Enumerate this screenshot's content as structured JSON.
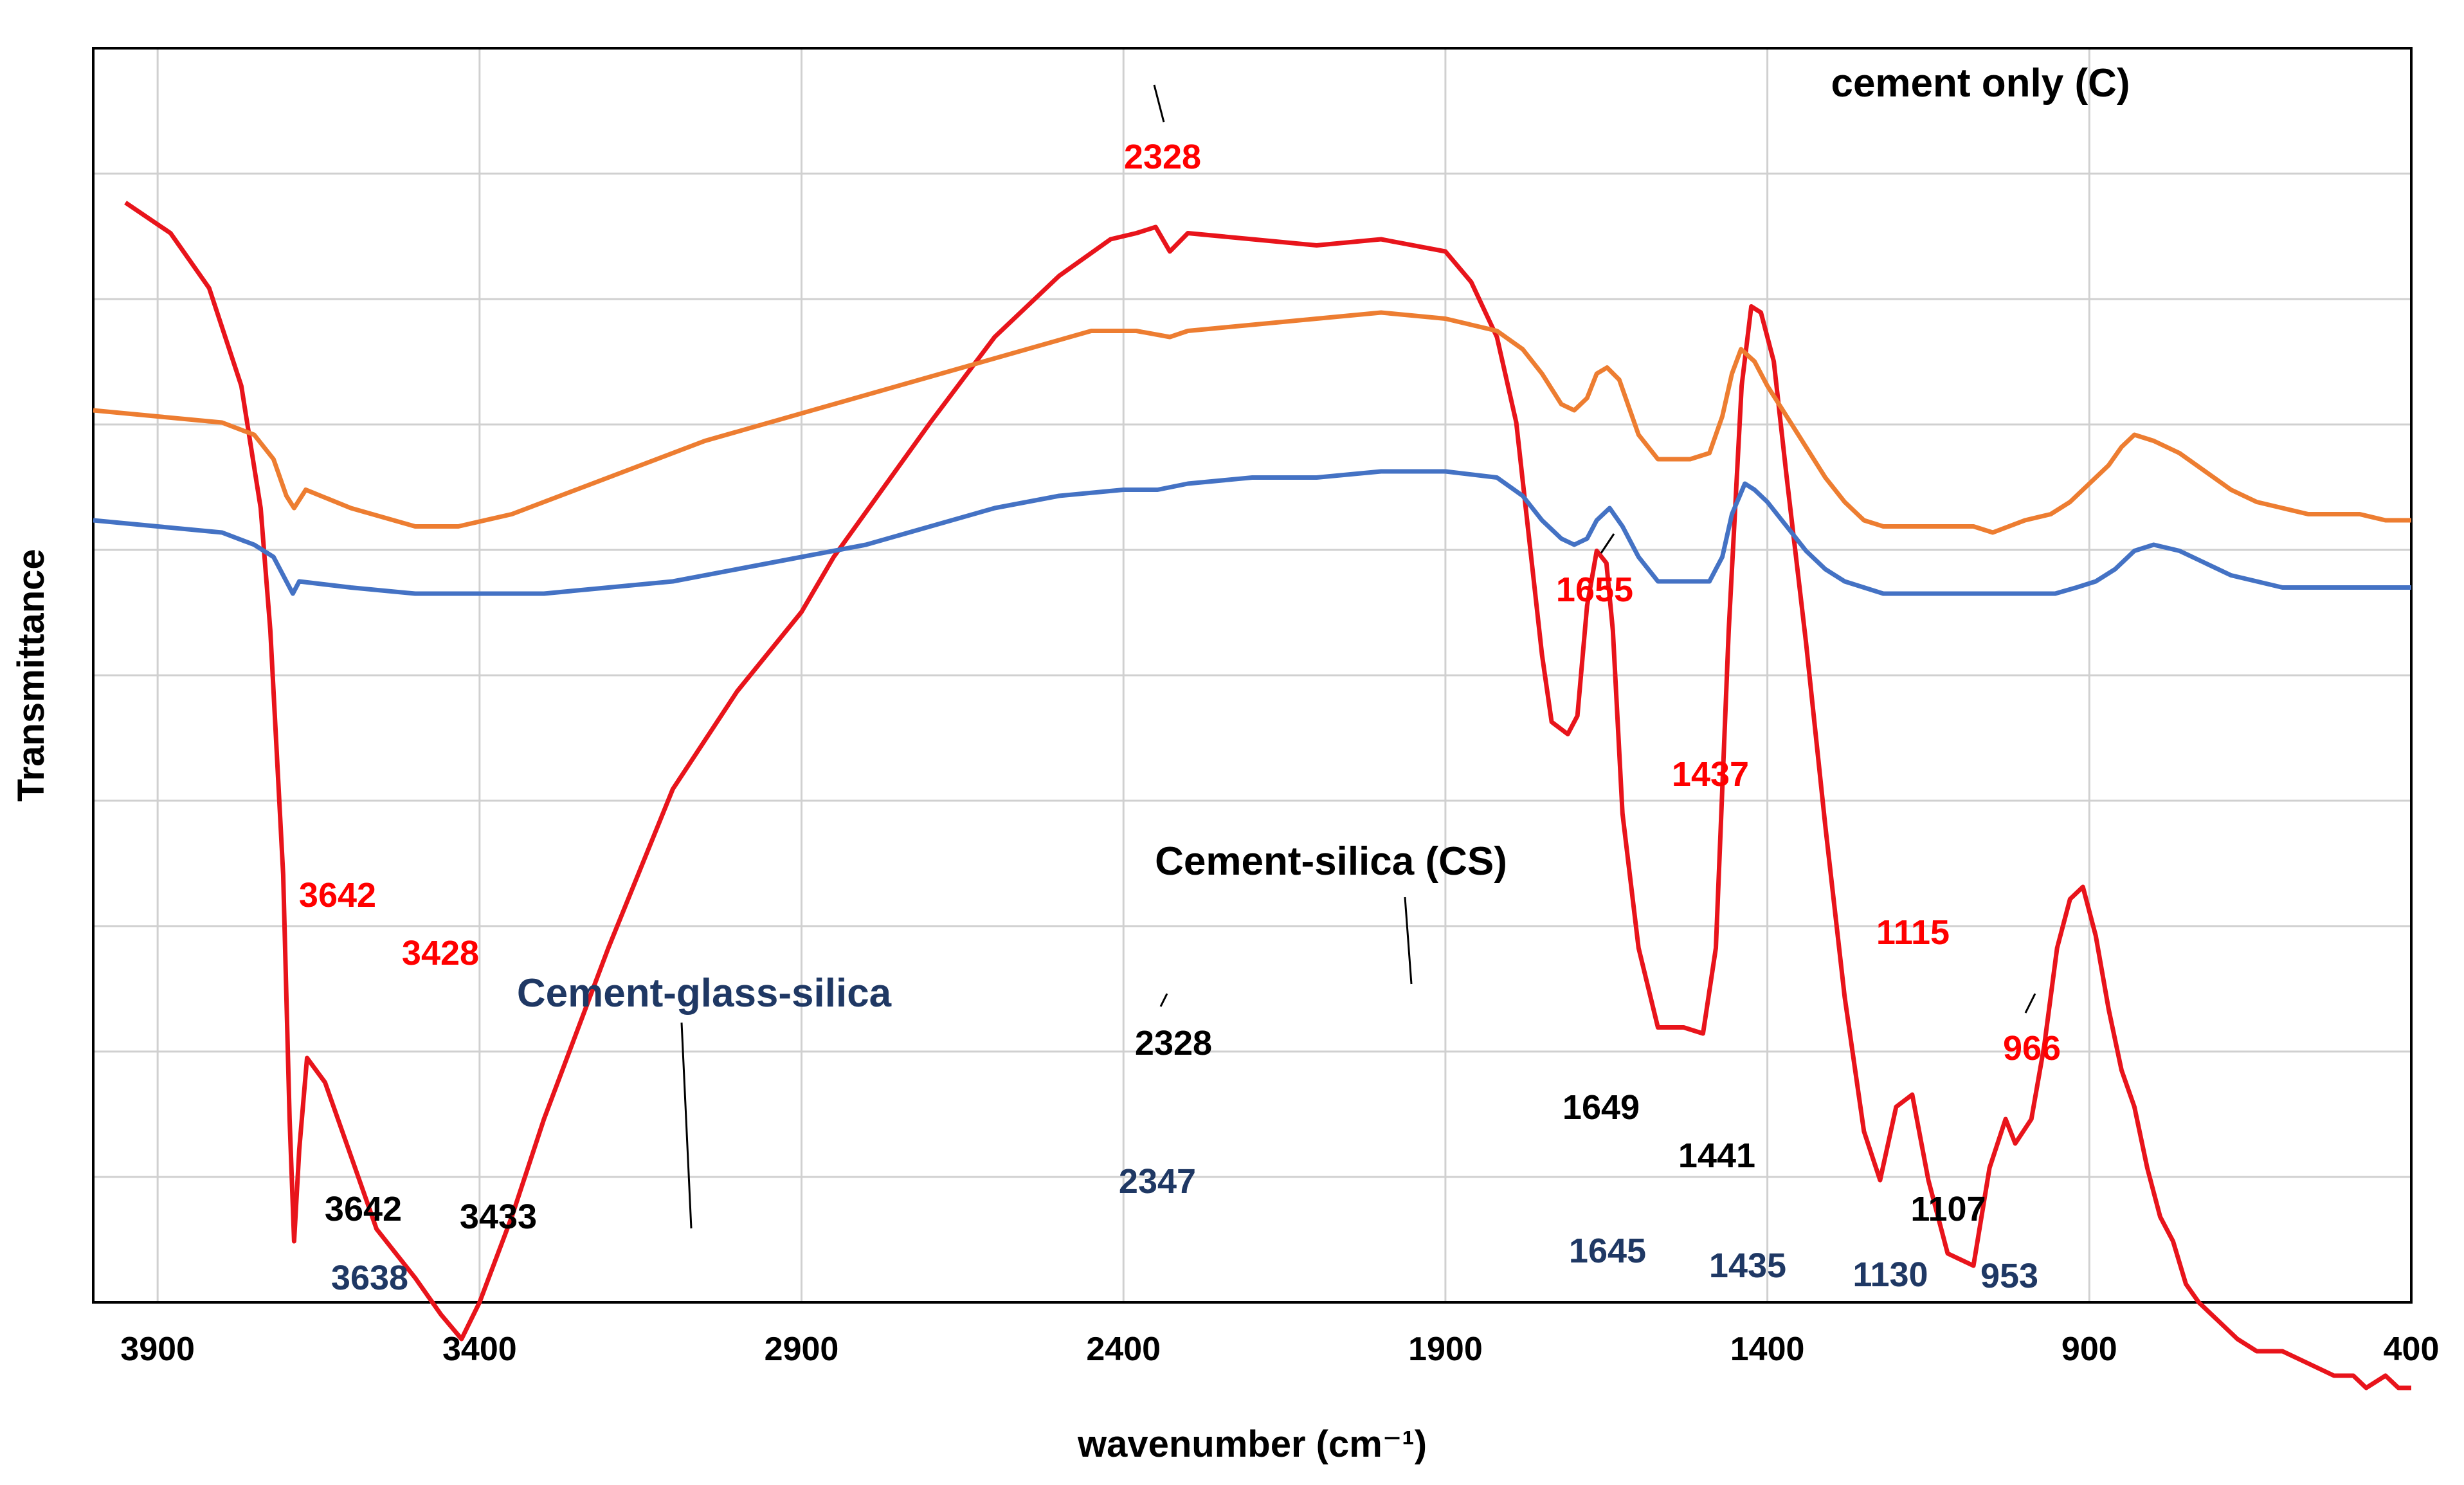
{
  "chart_data": {
    "type": "line",
    "xlabel": "wavenumber (cm⁻¹)",
    "ylabel": "Transmittance",
    "xlim": [
      4000,
      400
    ],
    "x_reversed": true,
    "x_ticks": [
      3900,
      3400,
      2900,
      2400,
      1900,
      1400,
      900,
      400
    ],
    "y_tick_labels_shown": false,
    "grid": "horizontal and vertical",
    "series": [
      {
        "name": "cement only (C)",
        "color": "#e8141b",
        "y_offset": 0,
        "points": [
          [
            3950,
            100
          ],
          [
            3880,
            95
          ],
          [
            3820,
            86
          ],
          [
            3770,
            70
          ],
          [
            3740,
            50
          ],
          [
            3725,
            30
          ],
          [
            3705,
            -10
          ],
          [
            3695,
            -50
          ],
          [
            3688,
            -70
          ],
          [
            3680,
            -55
          ],
          [
            3668,
            -40
          ],
          [
            3640,
            -44
          ],
          [
            3600,
            -56
          ],
          [
            3560,
            -68
          ],
          [
            3500,
            -76
          ],
          [
            3460,
            -82
          ],
          [
            3428,
            -86
          ],
          [
            3400,
            -80
          ],
          [
            3350,
            -66
          ],
          [
            3300,
            -50
          ],
          [
            3200,
            -22
          ],
          [
            3100,
            4
          ],
          [
            3000,
            20
          ],
          [
            2900,
            33
          ],
          [
            2850,
            42
          ],
          [
            2700,
            64
          ],
          [
            2600,
            78
          ],
          [
            2500,
            88
          ],
          [
            2420,
            94
          ],
          [
            2380,
            95
          ],
          [
            2350,
            96
          ],
          [
            2328,
            92
          ],
          [
            2300,
            95
          ],
          [
            2200,
            94
          ],
          [
            2100,
            93
          ],
          [
            2000,
            94
          ],
          [
            1900,
            92
          ],
          [
            1860,
            87
          ],
          [
            1820,
            78
          ],
          [
            1790,
            64
          ],
          [
            1770,
            45
          ],
          [
            1750,
            26
          ],
          [
            1735,
            15
          ],
          [
            1710,
            13
          ],
          [
            1695,
            16
          ],
          [
            1680,
            34
          ],
          [
            1665,
            43
          ],
          [
            1650,
            41
          ],
          [
            1640,
            30
          ],
          [
            1625,
            0
          ],
          [
            1600,
            -22
          ],
          [
            1570,
            -35
          ],
          [
            1530,
            -35
          ],
          [
            1500,
            -36
          ],
          [
            1480,
            -22
          ],
          [
            1460,
            30
          ],
          [
            1440,
            70
          ],
          [
            1425,
            83
          ],
          [
            1410,
            82
          ],
          [
            1390,
            74
          ],
          [
            1370,
            55
          ],
          [
            1340,
            28
          ],
          [
            1310,
            -2
          ],
          [
            1280,
            -30
          ],
          [
            1250,
            -52
          ],
          [
            1225,
            -60
          ],
          [
            1200,
            -48
          ],
          [
            1175,
            -46
          ],
          [
            1150,
            -60
          ],
          [
            1120,
            -72
          ],
          [
            1080,
            -74
          ],
          [
            1055,
            -58
          ],
          [
            1030,
            -50
          ],
          [
            1015,
            -54
          ],
          [
            990,
            -50
          ],
          [
            970,
            -38
          ],
          [
            950,
            -22
          ],
          [
            930,
            -14
          ],
          [
            910,
            -12
          ],
          [
            890,
            -20
          ],
          [
            870,
            -32
          ],
          [
            850,
            -42
          ],
          [
            830,
            -48
          ],
          [
            810,
            -58
          ],
          [
            790,
            -66
          ],
          [
            770,
            -70
          ],
          [
            750,
            -77
          ],
          [
            730,
            -80
          ],
          [
            700,
            -83
          ],
          [
            670,
            -86
          ],
          [
            640,
            -88
          ],
          [
            600,
            -88
          ],
          [
            560,
            -90
          ],
          [
            520,
            -92
          ],
          [
            490,
            -92
          ],
          [
            470,
            -94
          ],
          [
            440,
            -92
          ],
          [
            420,
            -94
          ],
          [
            400,
            -94
          ]
        ]
      },
      {
        "name": "Cement-silica (CS)",
        "color": "#ed7d31",
        "points": [
          [
            4000,
            66
          ],
          [
            3900,
            65
          ],
          [
            3800,
            64
          ],
          [
            3750,
            62
          ],
          [
            3720,
            58
          ],
          [
            3700,
            52
          ],
          [
            3688,
            50
          ],
          [
            3670,
            53
          ],
          [
            3600,
            50
          ],
          [
            3500,
            47
          ],
          [
            3433,
            47
          ],
          [
            3350,
            49
          ],
          [
            3250,
            53
          ],
          [
            3150,
            57
          ],
          [
            3050,
            61
          ],
          [
            2950,
            64
          ],
          [
            2850,
            67
          ],
          [
            2750,
            70
          ],
          [
            2650,
            73
          ],
          [
            2550,
            76
          ],
          [
            2450,
            79
          ],
          [
            2380,
            79
          ],
          [
            2328,
            78
          ],
          [
            2300,
            79
          ],
          [
            2200,
            80
          ],
          [
            2100,
            81
          ],
          [
            2000,
            82
          ],
          [
            1900,
            81
          ],
          [
            1820,
            79
          ],
          [
            1780,
            76
          ],
          [
            1750,
            72
          ],
          [
            1720,
            67
          ],
          [
            1700,
            66
          ],
          [
            1680,
            68
          ],
          [
            1665,
            72
          ],
          [
            1649,
            73
          ],
          [
            1630,
            71
          ],
          [
            1600,
            62
          ],
          [
            1570,
            58
          ],
          [
            1520,
            58
          ],
          [
            1490,
            59
          ],
          [
            1470,
            65
          ],
          [
            1455,
            72
          ],
          [
            1441,
            76
          ],
          [
            1420,
            74
          ],
          [
            1400,
            70
          ],
          [
            1370,
            65
          ],
          [
            1340,
            60
          ],
          [
            1310,
            55
          ],
          [
            1280,
            51
          ],
          [
            1250,
            48
          ],
          [
            1220,
            47
          ],
          [
            1200,
            47
          ],
          [
            1150,
            47
          ],
          [
            1107,
            47
          ],
          [
            1080,
            47
          ],
          [
            1050,
            46
          ],
          [
            1000,
            48
          ],
          [
            960,
            49
          ],
          [
            930,
            51
          ],
          [
            900,
            54
          ],
          [
            870,
            57
          ],
          [
            850,
            60
          ],
          [
            830,
            62
          ],
          [
            800,
            61
          ],
          [
            760,
            59
          ],
          [
            720,
            56
          ],
          [
            680,
            53
          ],
          [
            640,
            51
          ],
          [
            600,
            50
          ],
          [
            560,
            49
          ],
          [
            520,
            49
          ],
          [
            480,
            49
          ],
          [
            440,
            48
          ],
          [
            400,
            48
          ]
        ]
      },
      {
        "name": "Cement-glass-silica",
        "color": "#4472c4",
        "points": [
          [
            4000,
            48
          ],
          [
            3900,
            47
          ],
          [
            3800,
            46
          ],
          [
            3750,
            44
          ],
          [
            3720,
            42
          ],
          [
            3700,
            38
          ],
          [
            3690,
            36
          ],
          [
            3680,
            38
          ],
          [
            3600,
            37
          ],
          [
            3500,
            36
          ],
          [
            3400,
            36
          ],
          [
            3300,
            36
          ],
          [
            3200,
            37
          ],
          [
            3100,
            38
          ],
          [
            3000,
            40
          ],
          [
            2900,
            42
          ],
          [
            2800,
            44
          ],
          [
            2700,
            47
          ],
          [
            2600,
            50
          ],
          [
            2500,
            52
          ],
          [
            2400,
            53
          ],
          [
            2347,
            53
          ],
          [
            2300,
            54
          ],
          [
            2200,
            55
          ],
          [
            2100,
            55
          ],
          [
            2000,
            56
          ],
          [
            1900,
            56
          ],
          [
            1820,
            55
          ],
          [
            1780,
            52
          ],
          [
            1750,
            48
          ],
          [
            1720,
            45
          ],
          [
            1700,
            44
          ],
          [
            1680,
            45
          ],
          [
            1665,
            48
          ],
          [
            1645,
            50
          ],
          [
            1625,
            47
          ],
          [
            1600,
            42
          ],
          [
            1570,
            38
          ],
          [
            1520,
            38
          ],
          [
            1490,
            38
          ],
          [
            1470,
            42
          ],
          [
            1455,
            49
          ],
          [
            1435,
            54
          ],
          [
            1420,
            53
          ],
          [
            1400,
            51
          ],
          [
            1370,
            47
          ],
          [
            1340,
            43
          ],
          [
            1310,
            40
          ],
          [
            1280,
            38
          ],
          [
            1250,
            37
          ],
          [
            1220,
            36
          ],
          [
            1200,
            36
          ],
          [
            1150,
            36
          ],
          [
            1130,
            36
          ],
          [
            1100,
            36
          ],
          [
            1050,
            36
          ],
          [
            1000,
            36
          ],
          [
            953,
            36
          ],
          [
            920,
            37
          ],
          [
            890,
            38
          ],
          [
            860,
            40
          ],
          [
            830,
            43
          ],
          [
            800,
            44
          ],
          [
            760,
            43
          ],
          [
            720,
            41
          ],
          [
            680,
            39
          ],
          [
            640,
            38
          ],
          [
            600,
            37
          ],
          [
            560,
            37
          ],
          [
            520,
            37
          ],
          [
            480,
            37
          ],
          [
            440,
            37
          ],
          [
            400,
            37
          ]
        ]
      }
    ],
    "annotations": [
      {
        "text": "3642",
        "color": "#ff0000"
      },
      {
        "text": "3428",
        "color": "#ff0000"
      },
      {
        "text": "2328",
        "color": "#ff0000"
      },
      {
        "text": "1655",
        "color": "#ff0000"
      },
      {
        "text": "1437",
        "color": "#ff0000"
      },
      {
        "text": "1115",
        "color": "#ff0000"
      },
      {
        "text": "966",
        "color": "#ff0000"
      },
      {
        "text": "2328",
        "color": "#000000"
      },
      {
        "text": "3642",
        "color": "#000000"
      },
      {
        "text": "3433",
        "color": "#000000"
      },
      {
        "text": "1649",
        "color": "#000000"
      },
      {
        "text": "1441",
        "color": "#000000"
      },
      {
        "text": "1107",
        "color": "#000000"
      },
      {
        "text": "2347",
        "color": "#1f3864"
      },
      {
        "text": "3638",
        "color": "#1f3864"
      },
      {
        "text": "1645",
        "color": "#1f3864"
      },
      {
        "text": "1435",
        "color": "#1f3864"
      },
      {
        "text": "1130",
        "color": "#1f3864"
      },
      {
        "text": "953",
        "color": "#1f3864"
      }
    ],
    "series_labels": [
      {
        "text": "cement only (C)",
        "color": "#000000"
      },
      {
        "text": "Cement-silica (CS)",
        "color": "#000000"
      },
      {
        "text": "Cement-glass-silica",
        "color": "#1f3864"
      }
    ]
  }
}
